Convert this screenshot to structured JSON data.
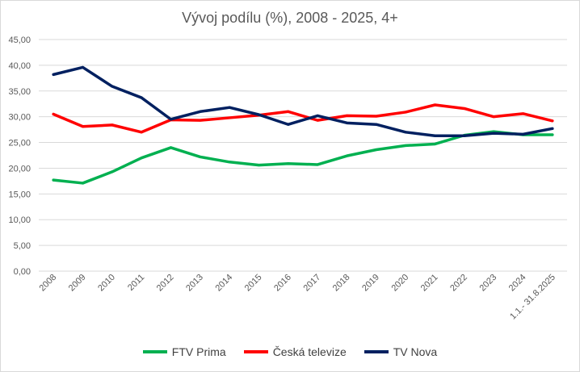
{
  "chart_data": {
    "type": "line",
    "title": "Vývoj podílu (%), 2008 - 2025, 4+",
    "categories": [
      "2008",
      "2009",
      "2010",
      "2011",
      "2012",
      "2013",
      "2014",
      "2015",
      "2016",
      "2017",
      "2018",
      "2019",
      "2020",
      "2021",
      "2022",
      "2023",
      "2024",
      "1.1.- 31.8.2025"
    ],
    "ylim": [
      0,
      45
    ],
    "yticks": [
      "0,00",
      "5,00",
      "10,00",
      "15,00",
      "20,00",
      "25,00",
      "30,00",
      "35,00",
      "40,00",
      "45,00"
    ],
    "grid": true,
    "legend": "bottom",
    "series": [
      {
        "name": "FTV Prima",
        "color": "#00b050",
        "values": [
          17.7,
          17.1,
          19.3,
          22.0,
          24.0,
          22.2,
          21.2,
          20.6,
          20.9,
          20.7,
          22.4,
          23.6,
          24.4,
          24.7,
          26.4,
          27.1,
          26.5,
          26.5
        ]
      },
      {
        "name": "Česká televize",
        "color": "#ff0000",
        "values": [
          30.5,
          28.1,
          28.4,
          27.0,
          29.4,
          29.3,
          29.8,
          30.3,
          31.0,
          29.3,
          30.2,
          30.1,
          30.9,
          32.3,
          31.6,
          30.0,
          30.6,
          29.2
        ]
      },
      {
        "name": "TV Nova",
        "color": "#002060",
        "values": [
          38.2,
          39.6,
          35.9,
          33.7,
          29.5,
          31.0,
          31.8,
          30.4,
          28.5,
          30.2,
          28.8,
          28.5,
          27.0,
          26.3,
          26.3,
          26.8,
          26.6,
          27.7
        ]
      }
    ]
  }
}
